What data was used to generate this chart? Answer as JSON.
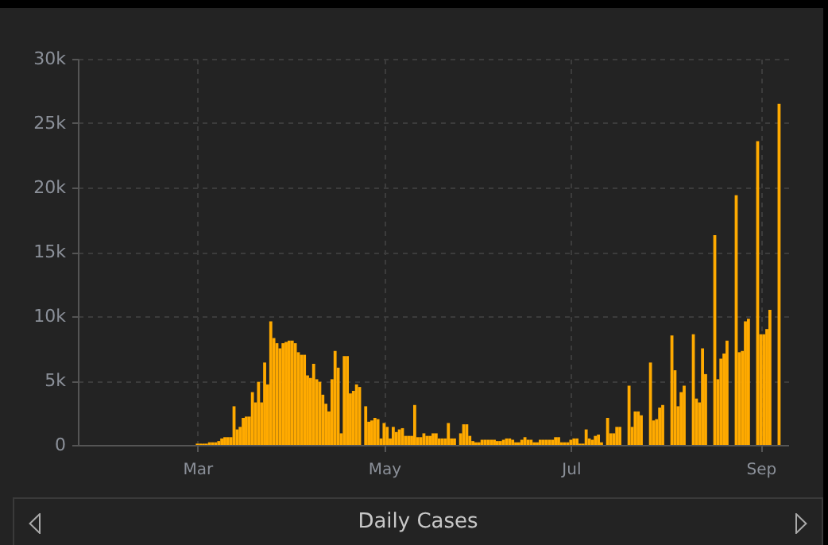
{
  "chart_data": {
    "type": "bar",
    "title": "Daily Cases",
    "x": [
      "--03-01",
      "--03-02",
      "--03-03",
      "--03-04",
      "--03-05",
      "--03-06",
      "--03-07",
      "--03-08",
      "--03-09",
      "--03-10",
      "--03-11",
      "--03-12",
      "--03-13",
      "--03-14",
      "--03-15",
      "--03-16",
      "--03-17",
      "--03-18",
      "--03-19",
      "--03-20",
      "--03-21",
      "--03-22",
      "--03-23",
      "--03-24",
      "--03-25",
      "--03-26",
      "--03-27",
      "--03-28",
      "--03-29",
      "--03-30",
      "--03-31",
      "--04-01",
      "--04-02",
      "--04-03",
      "--04-04",
      "--04-05",
      "--04-06",
      "--04-07",
      "--04-08",
      "--04-09",
      "--04-10",
      "--04-11",
      "--04-12",
      "--04-13",
      "--04-14",
      "--04-15",
      "--04-16",
      "--04-17",
      "--04-18",
      "--04-19",
      "--04-20",
      "--04-21",
      "--04-22",
      "--04-23",
      "--04-24",
      "--04-25",
      "--04-26",
      "--04-27",
      "--04-28",
      "--04-29",
      "--04-30",
      "--05-01",
      "--05-02",
      "--05-03",
      "--05-04",
      "--05-05",
      "--05-06",
      "--05-07",
      "--05-08",
      "--05-09",
      "--05-10",
      "--05-11",
      "--05-12",
      "--05-13",
      "--05-14",
      "--05-15",
      "--05-16",
      "--05-17",
      "--05-18",
      "--05-19",
      "--05-20",
      "--05-21",
      "--05-22",
      "--05-23",
      "--05-24",
      "--05-25",
      "--05-26",
      "--05-27",
      "--05-28",
      "--05-29",
      "--05-30",
      "--05-31",
      "--06-01",
      "--06-02",
      "--06-03",
      "--06-04",
      "--06-05",
      "--06-06",
      "--06-07",
      "--06-08",
      "--06-09",
      "--06-10",
      "--06-11",
      "--06-12",
      "--06-13",
      "--06-14",
      "--06-15",
      "--06-16",
      "--06-17",
      "--06-18",
      "--06-19",
      "--06-20",
      "--06-21",
      "--06-22",
      "--06-23",
      "--06-24",
      "--06-25",
      "--06-26",
      "--06-27",
      "--06-28",
      "--06-29",
      "--06-30",
      "--07-01",
      "--07-02",
      "--07-03",
      "--07-04",
      "--07-05",
      "--07-06",
      "--07-07",
      "--07-08",
      "--07-09",
      "--07-10",
      "--07-11",
      "--07-12",
      "--07-13",
      "--07-14",
      "--07-15",
      "--07-16",
      "--07-17",
      "--07-18",
      "--07-19",
      "--07-20",
      "--07-21",
      "--07-22",
      "--07-23",
      "--07-24",
      "--07-25",
      "--07-26",
      "--07-27",
      "--07-28",
      "--07-29",
      "--07-30",
      "--07-31",
      "--08-01",
      "--08-02",
      "--08-03",
      "--08-04",
      "--08-05",
      "--08-06",
      "--08-07",
      "--08-08",
      "--08-09",
      "--08-10",
      "--08-11",
      "--08-12",
      "--08-13",
      "--08-14",
      "--08-15",
      "--08-16",
      "--08-17",
      "--08-18",
      "--08-19",
      "--08-20",
      "--08-21",
      "--08-22",
      "--08-23",
      "--08-24",
      "--08-25",
      "--08-26",
      "--08-27",
      "--08-28",
      "--08-29",
      "--08-30",
      "--08-31",
      "--09-01",
      "--09-02",
      "--09-03",
      "--09-04",
      "--09-05",
      "--09-06",
      "--09-07"
    ],
    "series": [
      {
        "color": "#ffaa00",
        "values": [
          100,
          100,
          100,
          100,
          200,
          200,
          200,
          300,
          500,
          600,
          600,
          600,
          3000,
          1200,
          1400,
          2100,
          2200,
          2200,
          4100,
          3300,
          4900,
          3300,
          6400,
          4700,
          9600,
          8300,
          7900,
          7500,
          7900,
          8000,
          8100,
          8100,
          7900,
          7200,
          7000,
          7000,
          5400,
          5200,
          6300,
          5100,
          4900,
          3900,
          3200,
          2600,
          5100,
          7300,
          6000,
          900,
          6900,
          6900,
          4000,
          4200,
          4700,
          4500,
          0,
          3000,
          1800,
          1900,
          2100,
          2000,
          500,
          1700,
          1400,
          500,
          1400,
          1000,
          1200,
          1300,
          700,
          700,
          700,
          3100,
          600,
          600,
          900,
          700,
          700,
          900,
          900,
          500,
          500,
          500,
          1700,
          500,
          500,
          0,
          900,
          1600,
          1600,
          700,
          300,
          200,
          200,
          400,
          400,
          400,
          400,
          400,
          300,
          300,
          400,
          500,
          500,
          400,
          200,
          200,
          400,
          600,
          400,
          400,
          200,
          200,
          400,
          400,
          400,
          400,
          400,
          600,
          600,
          200,
          200,
          200,
          400,
          500,
          500,
          100,
          100,
          1200,
          500,
          400,
          700,
          800,
          200,
          0,
          2100,
          900,
          900,
          1400,
          1400,
          0,
          0,
          4600,
          1400,
          2600,
          2600,
          2300,
          0,
          0,
          6400,
          1900,
          2000,
          2900,
          3100,
          0,
          0,
          8500,
          5800,
          3000,
          4100,
          4600,
          0,
          0,
          8600,
          3600,
          3300,
          7500,
          5500,
          0,
          0,
          16300,
          5100,
          6700,
          7100,
          8100,
          0,
          0,
          19400,
          7200,
          7300,
          9600,
          9800,
          0,
          0,
          23600,
          8600,
          8600,
          9000,
          10500,
          0,
          0,
          26500
        ]
      }
    ],
    "xlim": [
      "--01-22",
      "--09-10"
    ],
    "xticks": [
      {
        "value": "--03-01",
        "label": "Mar"
      },
      {
        "value": "--05-01",
        "label": "May"
      },
      {
        "value": "--07-01",
        "label": "Jul"
      },
      {
        "value": "--09-01",
        "label": "Sep"
      }
    ],
    "ylim": [
      0,
      30000
    ],
    "yticks": [
      0,
      {
        "value": 5000,
        "label": "5k"
      },
      {
        "value": 10000,
        "label": "10k"
      },
      {
        "value": 15000,
        "label": "15k"
      },
      {
        "value": 20000,
        "label": "20k"
      },
      {
        "value": 25000,
        "label": "25k"
      },
      {
        "value": 30000,
        "label": "30k"
      }
    ],
    "grid": true
  }
}
